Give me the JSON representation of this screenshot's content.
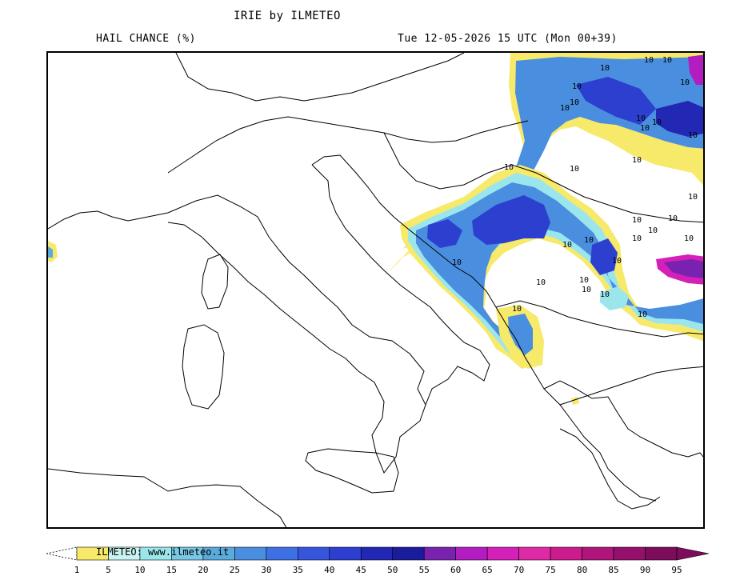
{
  "header": {
    "title": "IRIE by ILMETEO",
    "subtitle": "HAIL CHANCE (%)",
    "valid_time": "Tue 12-05-2026 15 UTC (Mon 00+39)"
  },
  "credit": "ILMETEO: www.ilmeteo.it",
  "map": {
    "region": "Italy and the Balkans",
    "contour_label": "10",
    "contour_label_count": 30
  },
  "legend": {
    "ticks": [
      "1",
      "5",
      "10",
      "15",
      "20",
      "25",
      "30",
      "35",
      "40",
      "45",
      "50",
      "55",
      "60",
      "65",
      "70",
      "75",
      "80",
      "85",
      "90",
      "95"
    ],
    "colors": [
      "#f7e96a",
      "#c8f4f2",
      "#9be6ec",
      "#78c8e6",
      "#5aaadc",
      "#4a8ee0",
      "#3f6fe4",
      "#3655dc",
      "#2c3fcf",
      "#2227b4",
      "#1a1c9c",
      "#7a22b0",
      "#b21cc0",
      "#d41fb8",
      "#de2aa6",
      "#cc1b8c",
      "#b0157c",
      "#94106a",
      "#7e0c5c"
    ],
    "below_color": "#ffffff",
    "above_color": "#7e0c5c"
  }
}
